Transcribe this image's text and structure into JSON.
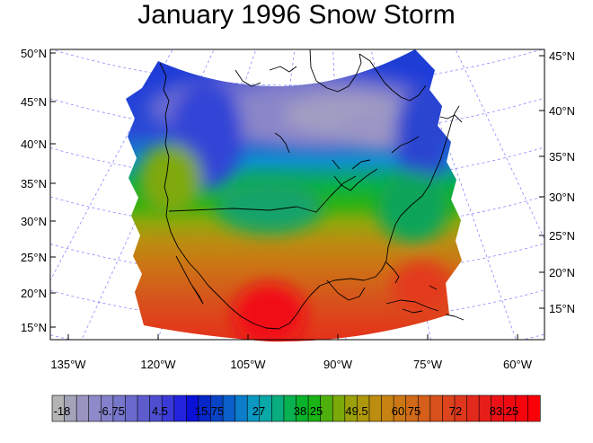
{
  "title": "January 1996 Snow Storm",
  "map": {
    "left_lat_labels": [
      "50°N",
      "45°N",
      "40°N",
      "35°N",
      "30°N",
      "25°N",
      "20°N",
      "15°N"
    ],
    "right_lat_labels": [
      "45°N",
      "40°N",
      "35°N",
      "30°N",
      "25°N",
      "20°N",
      "15°N"
    ],
    "lon_labels": [
      "135°W",
      "120°W",
      "105°W",
      "90°W",
      "75°W",
      "60°W"
    ],
    "projection": "conic",
    "graticule_color": "#8a8aff",
    "coastline_color": "#000000"
  },
  "colorbar": {
    "labels": [
      "-18",
      "-6.75",
      "4.5",
      "15.75",
      "27",
      "38.25",
      "49.5",
      "60.75",
      "72",
      "83.25"
    ],
    "palette": [
      "#b4b4b4",
      "#a3a3b9",
      "#9a95c0",
      "#8e8ac9",
      "#8381cb",
      "#7676cb",
      "#6a69cc",
      "#5e5ccd",
      "#4e4fd0",
      "#3a3ad8",
      "#2323de",
      "#0a10d6",
      "#0727c8",
      "#0944c6",
      "#0a5fca",
      "#0b7dcb",
      "#0b99c4",
      "#0aa8a6",
      "#0aad7e",
      "#09b151",
      "#08b22b",
      "#1ab214",
      "#4fb00d",
      "#7ba90b",
      "#9aa10a",
      "#ae970c",
      "#bd8d10",
      "#c78312",
      "#cc7716",
      "#d06a18",
      "#d45e1a",
      "#d8511c",
      "#db441d",
      "#de371d",
      "#e22a1c",
      "#e61e1a",
      "#ea1216",
      "#ef0a12",
      "#f5040d",
      "#fa0008"
    ]
  }
}
